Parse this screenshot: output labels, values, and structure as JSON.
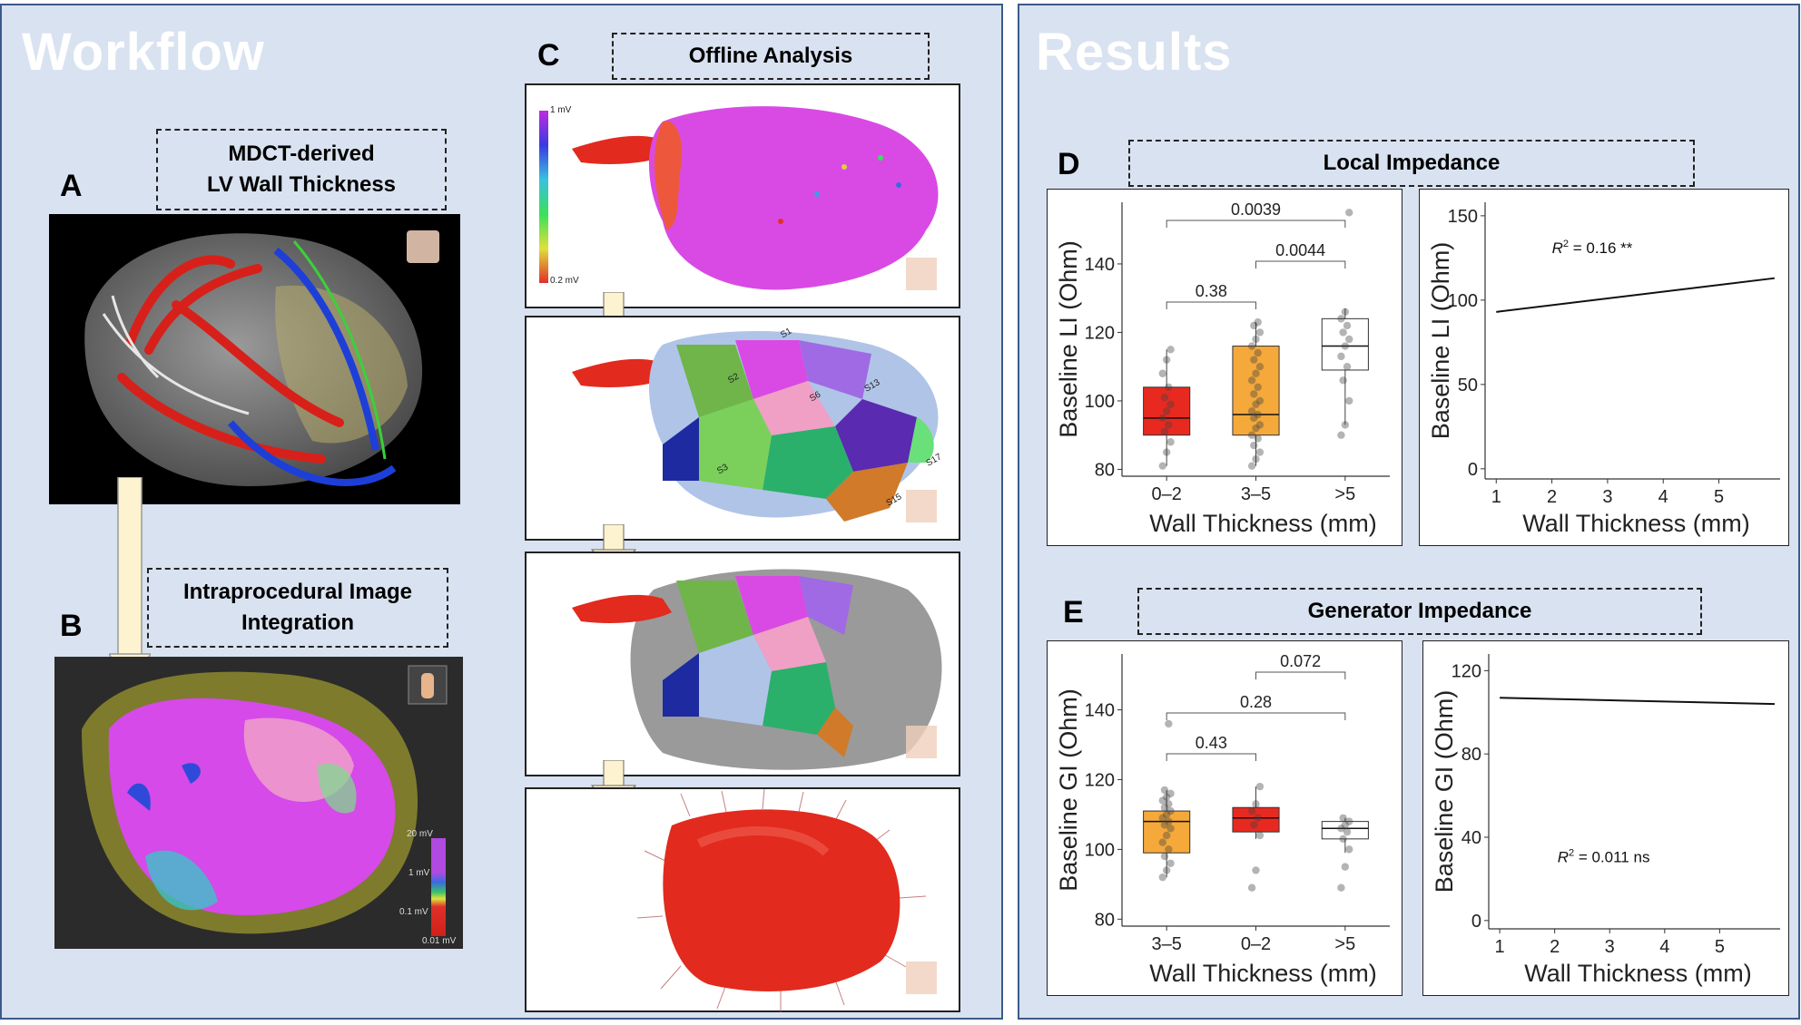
{
  "workflow": {
    "title": "Workflow",
    "panel_a": {
      "letter": "A",
      "box_title_line1": "MDCT-derived",
      "box_title_line2": "LV Wall Thickness"
    },
    "panel_b": {
      "letter": "B",
      "box_title_line1": "Intraprocedural Image",
      "box_title_line2": "Integration",
      "scale": [
        "20 mV",
        "1 mV",
        "0.1 mV",
        "0.01 mV"
      ]
    },
    "panel_c": {
      "letter": "C",
      "box_title": "Offline Analysis",
      "scale_top": "1 mV",
      "scale_bottom": "0.2 mV",
      "segments": [
        "S2",
        "S6",
        "S13",
        "S17",
        "S15",
        "S3",
        "S1"
      ]
    }
  },
  "results": {
    "title": "Results",
    "panel_d": {
      "letter": "D",
      "box_title": "Local Impedance"
    },
    "panel_e": {
      "letter": "E",
      "box_title": "Generator Impedance"
    }
  },
  "chart_data": [
    {
      "id": "D-box",
      "type": "box",
      "xlabel": "Wall Thickness (mm)",
      "ylabel": "Baseline LI (Ohm)",
      "categories": [
        "0–2",
        "3–5",
        ">5"
      ],
      "ylim": [
        78,
        158
      ],
      "yticks": [
        80,
        100,
        120,
        140
      ],
      "colors": [
        "#e8291f",
        "#f5a93a",
        "#ffffff"
      ],
      "boxes": [
        {
          "q1": 90,
          "median": 95,
          "q3": 104,
          "whisker_low": 81,
          "whisker_high": 115
        },
        {
          "q1": 90,
          "median": 96,
          "q3": 116,
          "whisker_low": 81,
          "whisker_high": 123
        },
        {
          "q1": 109,
          "median": 116,
          "q3": 124,
          "whisker_low": 93,
          "whisker_high": 127
        }
      ],
      "points": [
        [
          81,
          85,
          88,
          91,
          93,
          95,
          97,
          99,
          101,
          104,
          108,
          112,
          115
        ],
        [
          81,
          83,
          85,
          87,
          89,
          90,
          92,
          93,
          95,
          96,
          97,
          99,
          100,
          102,
          104,
          106,
          108,
          110,
          112,
          114,
          116,
          118,
          120,
          122,
          123
        ],
        [
          90,
          93,
          100,
          106,
          110,
          113,
          116,
          118,
          120,
          122,
          124,
          126,
          155
        ]
      ],
      "brackets": [
        {
          "from": 0,
          "to": 2,
          "label": "0.0039"
        },
        {
          "from": 1,
          "to": 2,
          "label": "0.0044"
        },
        {
          "from": 0,
          "to": 1,
          "label": "0.38"
        }
      ]
    },
    {
      "id": "D-line",
      "type": "line",
      "xlabel": "Wall Thickness (mm)",
      "ylabel": "Baseline LI (Ohm)",
      "xticks": [
        1,
        2,
        3,
        4,
        5
      ],
      "yticks": [
        0,
        50,
        100,
        150
      ],
      "xlim": [
        0.8,
        6.1
      ],
      "ylim": [
        -6,
        158
      ],
      "x": [
        1,
        6
      ],
      "y": [
        93,
        113
      ],
      "annotation": "R² = 0.16 **"
    },
    {
      "id": "E-box",
      "type": "box",
      "xlabel": "Wall Thickness (mm)",
      "ylabel": "Baseline GI (Ohm)",
      "categories": [
        "3–5",
        "0–2",
        ">5"
      ],
      "ylim": [
        78,
        156
      ],
      "yticks": [
        80,
        100,
        120,
        140
      ],
      "colors": [
        "#f5a93a",
        "#e8291f",
        "#ffffff"
      ],
      "boxes": [
        {
          "q1": 99,
          "median": 108,
          "q3": 111,
          "whisker_low": 92,
          "whisker_high": 117
        },
        {
          "q1": 105,
          "median": 109,
          "q3": 112,
          "whisker_low": 103,
          "whisker_high": 118
        },
        {
          "q1": 103,
          "median": 106,
          "q3": 108,
          "whisker_low": 99,
          "whisker_high": 109
        }
      ],
      "points": [
        [
          92,
          94,
          96,
          98,
          100,
          102,
          104,
          106,
          107,
          108,
          109,
          110,
          111,
          112,
          113,
          114,
          115,
          116,
          117,
          136
        ],
        [
          89,
          94,
          104,
          107,
          109,
          111,
          113,
          118
        ],
        [
          89,
          95,
          100,
          103,
          105,
          106,
          107,
          108,
          109
        ]
      ],
      "brackets": [
        {
          "from": 1,
          "to": 2,
          "label": "0.072"
        },
        {
          "from": 0,
          "to": 2,
          "label": "0.28"
        },
        {
          "from": 0,
          "to": 1,
          "label": "0.43"
        }
      ]
    },
    {
      "id": "E-line",
      "type": "line",
      "xlabel": "Wall Thickness (mm)",
      "ylabel": "Baseline GI (Ohm)",
      "xticks": [
        1,
        2,
        3,
        4,
        5
      ],
      "yticks": [
        0,
        40,
        80,
        120
      ],
      "xlim": [
        0.8,
        6.1
      ],
      "ylim": [
        -4,
        128
      ],
      "x": [
        1,
        6
      ],
      "y": [
        107,
        104
      ],
      "annotation": "R² = 0.011 ns"
    }
  ]
}
